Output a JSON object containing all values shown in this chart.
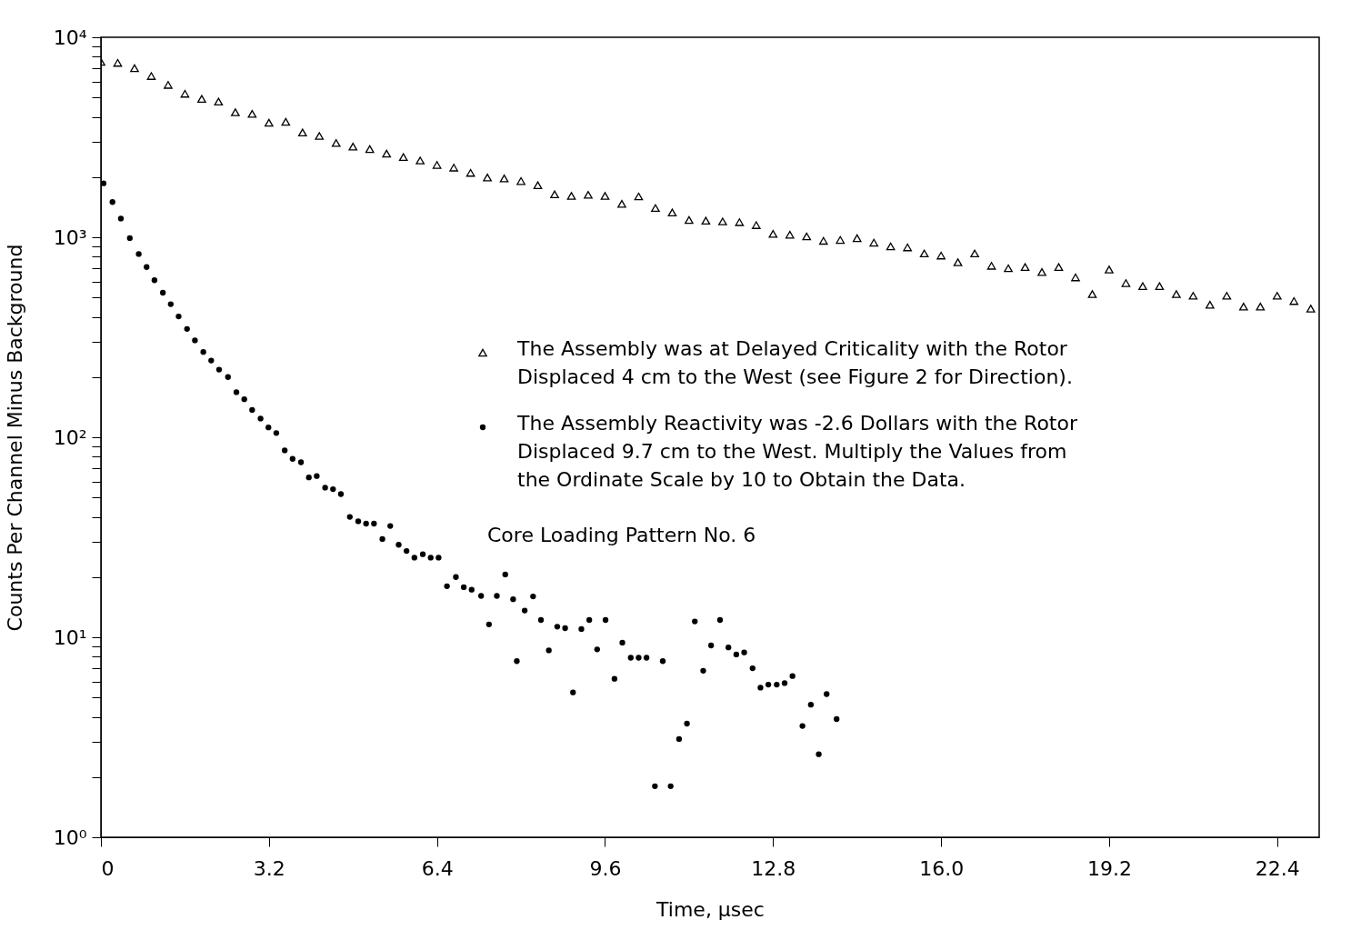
{
  "chart_data": {
    "type": "scatter",
    "xlabel": "Time, µsec",
    "ylabel": "Counts Per Channel Minus Background",
    "xlim": [
      0,
      23.2
    ],
    "ylim": [
      1,
      10000
    ],
    "log": "y",
    "grid": false,
    "legend": "right",
    "xticks": [
      0,
      3.2,
      6.4,
      9.6,
      12.8,
      {
        "value": 16,
        "label": "16.0"
      },
      19.2,
      22.4
    ],
    "yticks": [
      {
        "value": 1,
        "label": "10⁰"
      },
      {
        "value": 2,
        "label": null
      },
      {
        "value": 3,
        "label": null
      },
      {
        "value": 4,
        "label": null
      },
      {
        "value": 5,
        "label": null
      },
      {
        "value": 6,
        "label": null
      },
      {
        "value": 7,
        "label": null
      },
      {
        "value": 8,
        "label": null
      },
      {
        "value": 9,
        "label": null
      },
      {
        "value": 10,
        "label": "10¹"
      },
      {
        "value": 20,
        "label": null
      },
      {
        "value": 30,
        "label": null
      },
      {
        "value": 40,
        "label": null
      },
      {
        "value": 50,
        "label": null
      },
      {
        "value": 60,
        "label": null
      },
      {
        "value": 70,
        "label": null
      },
      {
        "value": 80,
        "label": null
      },
      {
        "value": 90,
        "label": null
      },
      {
        "value": 100,
        "label": "10²"
      },
      {
        "value": 200,
        "label": null
      },
      {
        "value": 300,
        "label": null
      },
      {
        "value": 400,
        "label": null
      },
      {
        "value": 500,
        "label": null
      },
      {
        "value": 600,
        "label": null
      },
      {
        "value": 700,
        "label": null
      },
      {
        "value": 800,
        "label": null
      },
      {
        "value": 900,
        "label": null
      },
      {
        "value": 1000,
        "label": "10³"
      },
      {
        "value": 2000,
        "label": null
      },
      {
        "value": 3000,
        "label": null
      },
      {
        "value": 4000,
        "label": null
      },
      {
        "value": 5000,
        "label": null
      },
      {
        "value": 6000,
        "label": null
      },
      {
        "value": 7000,
        "label": null
      },
      {
        "value": 8000,
        "label": null
      },
      {
        "value": 9000,
        "label": null
      },
      {
        "value": 10000,
        "label": "10⁴"
      }
    ],
    "annotations": [
      "Core Loading Pattern No. 6"
    ],
    "series": [
      {
        "name": "The Assembly was at Delayed Criticality with the Rotor Displaced 4 cm to the West (see Figure 2 for Direction).",
        "color": "#000000",
        "marker": "triangle",
        "x": [
          0,
          0.32,
          0.64,
          0.96,
          1.28,
          1.6,
          1.92,
          2.24,
          2.56,
          2.88,
          3.2,
          3.52,
          3.84,
          4.16,
          4.48,
          4.8,
          5.12,
          5.44,
          5.76,
          6.08,
          6.4,
          6.72,
          7.04,
          7.36,
          7.68,
          8.0,
          8.32,
          8.64,
          8.96,
          9.28,
          9.6,
          9.92,
          10.24,
          10.56,
          10.88,
          11.2,
          11.52,
          11.84,
          12.16,
          12.48,
          12.8,
          13.12,
          13.44,
          13.76,
          14.08,
          14.4,
          14.72,
          15.04,
          15.36,
          15.68,
          16.0,
          16.32,
          16.64,
          16.96,
          17.28,
          17.6,
          17.92,
          18.24,
          18.56,
          18.88,
          19.2,
          19.52,
          19.84,
          20.16,
          20.48,
          20.8,
          21.12,
          21.44,
          21.76,
          22.08,
          22.4,
          22.72,
          23.04
        ],
        "values": [
          7540,
          7450,
          7010,
          6400,
          5780,
          5220,
          4920,
          4770,
          4220,
          4140,
          3740,
          3780,
          3340,
          3210,
          2960,
          2840,
          2760,
          2620,
          2520,
          2420,
          2300,
          2230,
          2100,
          1990,
          1970,
          1910,
          1820,
          1640,
          1610,
          1630,
          1610,
          1470,
          1600,
          1400,
          1330,
          1220,
          1210,
          1200,
          1190,
          1150,
          1040,
          1030,
          1010,
          960,
          970,
          990,
          940,
          900,
          890,
          830,
          810,
          750,
          830,
          720,
          700,
          710,
          670,
          710,
          630,
          520,
          690,
          590,
          570,
          570,
          520,
          510,
          460,
          510,
          450,
          450,
          510,
          480,
          440
        ]
      },
      {
        "name": "The Assembly Reactivity was -2.6 Dollars with the Rotor Displaced 9.7 cm to the West.  Multiply the Values from the Ordinate Scale by 10 to Obtain the Data.",
        "color": "#000000",
        "marker": "circle",
        "x": [
          0.05,
          0.22,
          0.38,
          0.55,
          0.72,
          0.87,
          1.02,
          1.18,
          1.33,
          1.48,
          1.64,
          1.79,
          1.95,
          2.1,
          2.25,
          2.42,
          2.58,
          2.73,
          2.88,
          3.04,
          3.19,
          3.34,
          3.5,
          3.65,
          3.81,
          3.96,
          4.11,
          4.27,
          4.42,
          4.57,
          4.74,
          4.9,
          5.05,
          5.2,
          5.36,
          5.51,
          5.67,
          5.82,
          5.97,
          6.13,
          6.28,
          6.43,
          6.59,
          6.76,
          6.91,
          7.06,
          7.24,
          7.39,
          7.54,
          7.7,
          7.85,
          7.92,
          8.07,
          8.23,
          8.38,
          8.53,
          8.69,
          8.84,
          8.99,
          9.15,
          9.3,
          9.45,
          9.61,
          9.78,
          9.93,
          10.09,
          10.24,
          10.39,
          10.55,
          10.7,
          10.85,
          11.01,
          11.16,
          11.31,
          11.47,
          11.62,
          11.79,
          11.95,
          12.1,
          12.25,
          12.41,
          12.56,
          12.71,
          12.87,
          13.02,
          13.17,
          13.36,
          13.52,
          13.67,
          13.82,
          14.01
        ],
        "values": [
          1860,
          1500,
          1240,
          990,
          825,
          710,
          610,
          528,
          463,
          402,
          348,
          305,
          267,
          242,
          218,
          200,
          168,
          155,
          137,
          124,
          112,
          105,
          86,
          78,
          75,
          63,
          64,
          56,
          55,
          52,
          40,
          38,
          37,
          37,
          31,
          36,
          29,
          27,
          25,
          26,
          25,
          25,
          18,
          20,
          17.8,
          17.3,
          16.1,
          11.6,
          16.1,
          20.6,
          15.5,
          7.6,
          13.6,
          16,
          12.2,
          8.6,
          11.3,
          11.1,
          5.3,
          11,
          12.2,
          8.7,
          12.2,
          6.2,
          9.4,
          7.9,
          7.9,
          7.9,
          1.8,
          7.6,
          1.8,
          3.1,
          3.7,
          12,
          6.8,
          9.1,
          12.2,
          8.9,
          8.2,
          8.4,
          7,
          5.6,
          5.8,
          5.8,
          5.9,
          6.4,
          3.6,
          4.6,
          2.6,
          5.2,
          3.9
        ]
      }
    ]
  }
}
